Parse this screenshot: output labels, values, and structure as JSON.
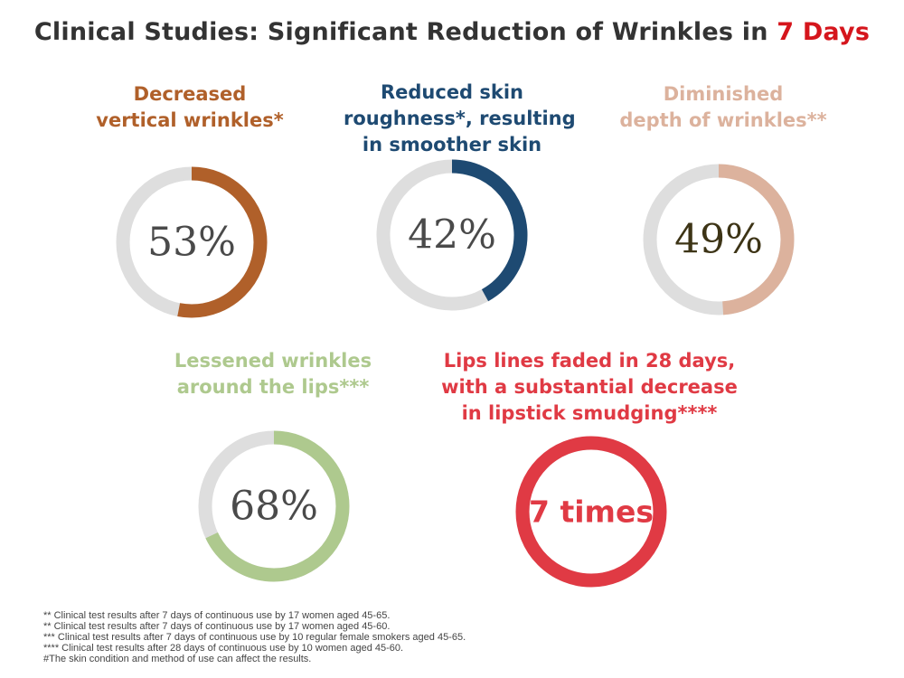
{
  "title": {
    "main": "Clinical Studies: Significant Reduction of Wrinkles in ",
    "accent": "7 Days"
  },
  "colors": {
    "track": "#dedede",
    "brown": "#b0602a",
    "navy": "#1e4a72",
    "peach": "#dcb29d",
    "green": "#aec98e",
    "red": "#e03a44"
  },
  "chart_data": [
    {
      "type": "pie",
      "label_lines": [
        "Decreased",
        "vertical wrinkles*"
      ],
      "value": 53,
      "value_text": "53%",
      "color": "#b0602a"
    },
    {
      "type": "pie",
      "label_lines": [
        "Reduced skin",
        "roughness*, resulting",
        "in smoother skin"
      ],
      "value": 42,
      "value_text": "42%",
      "color": "#1e4a72"
    },
    {
      "type": "pie",
      "label_lines": [
        "Diminished",
        "depth of wrinkles**"
      ],
      "value": 49,
      "value_text": "49%",
      "color": "#dcb29d"
    },
    {
      "type": "pie",
      "label_lines": [
        "Lessened wrinkles",
        "around the lips***"
      ],
      "value": 68,
      "value_text": "68%",
      "color": "#aec98e"
    },
    {
      "type": "pie",
      "label_lines": [
        "Lips lines faded in 28 days,",
        "with a substantial decrease",
        "in lipstick smudging****"
      ],
      "value": 100,
      "value_text": "7 times",
      "color": "#e03a44"
    }
  ],
  "footnotes": [
    "** Clinical test results after 7 days of continuous use by 17 women aged 45-65.",
    "** Clinical test results after 7 days of continuous use by 17 women aged 45-60.",
    "*** Clinical test results after 7 days of continuous use by 10 regular female smokers aged 45-65.",
    "**** Clinical test results after 28 days of continuous use by 10 women aged 45-60.",
    "#The skin condition and method of use can affect the results."
  ]
}
